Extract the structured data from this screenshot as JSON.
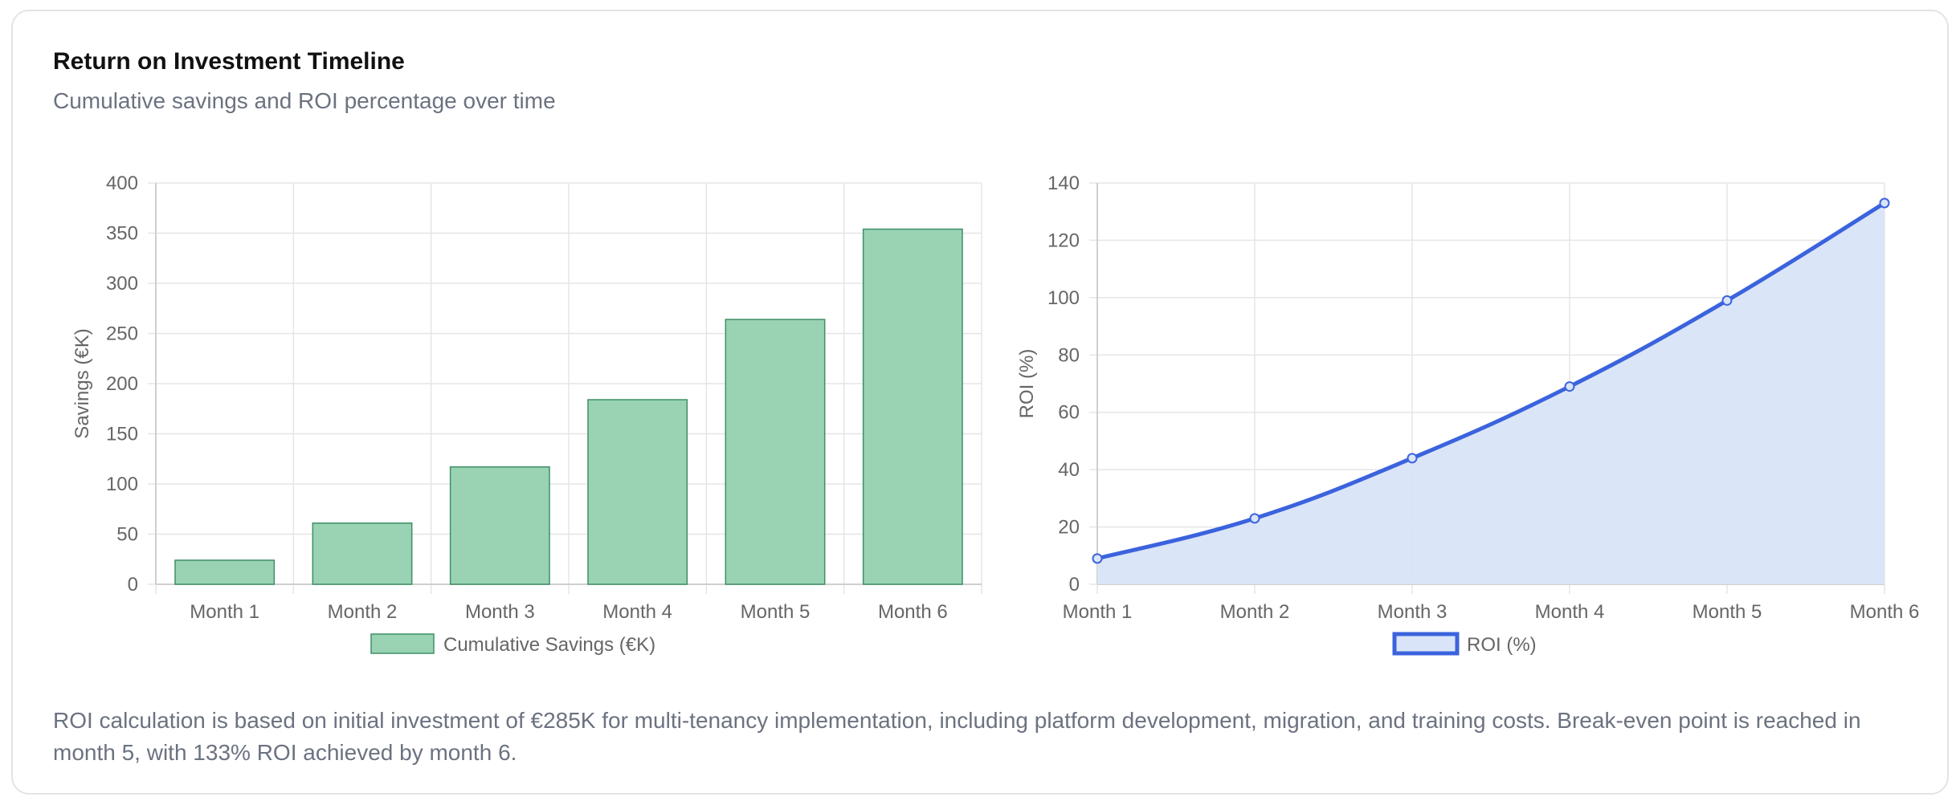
{
  "card": {
    "title": "Return on Investment Timeline",
    "subtitle": "Cumulative savings and ROI percentage over time",
    "note": "ROI calculation is based on initial investment of €285K for multi-tenancy implementation, including platform development, migration, and training costs. Break-even point is reached in month 5, with 133% ROI achieved by month 6."
  },
  "colors": {
    "bar_fill": "#99d3b4",
    "bar_stroke": "#3f8f66",
    "line_stroke": "#3b63dd",
    "area_fill": "#d9e4f8",
    "grid": "#e5e5e5",
    "tick_text": "#666666"
  },
  "chart_data": [
    {
      "type": "bar",
      "categories": [
        "Month 1",
        "Month 2",
        "Month 3",
        "Month 4",
        "Month 5",
        "Month 6"
      ],
      "series": [
        {
          "name": "Cumulative Savings (€K)",
          "values": [
            24,
            61,
            117,
            184,
            264,
            354
          ]
        }
      ],
      "ylabel": "Savings (€K)",
      "xlabel": "",
      "ylim": [
        0,
        400
      ],
      "yticks": [
        0,
        50,
        100,
        150,
        200,
        250,
        300,
        350,
        400
      ],
      "grid": true,
      "legend": "bottom"
    },
    {
      "type": "area",
      "categories": [
        "Month 1",
        "Month 2",
        "Month 3",
        "Month 4",
        "Month 5",
        "Month 6"
      ],
      "series": [
        {
          "name": "ROI (%)",
          "values": [
            9,
            23,
            44,
            69,
            99,
            133
          ]
        }
      ],
      "ylabel": "ROI (%)",
      "xlabel": "",
      "ylim": [
        0,
        140
      ],
      "yticks": [
        0,
        20,
        40,
        60,
        80,
        100,
        120,
        140
      ],
      "grid": true,
      "legend": "bottom"
    }
  ]
}
